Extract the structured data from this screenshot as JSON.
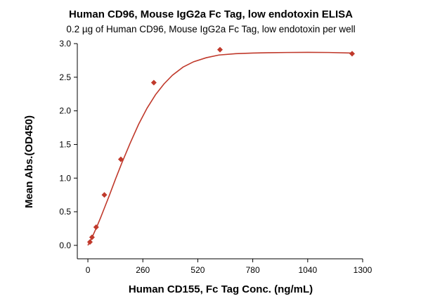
{
  "chart_data": {
    "type": "scatter",
    "title": "Human CD96, Mouse IgG2a Fc Tag, low endotoxin ELISA",
    "subtitle": "0.2 µg of Human CD96, Mouse IgG2a Fc Tag, low endotoxin per well",
    "xlabel": "Human CD155, Fc Tag Conc. (ng/mL)",
    "ylabel": "Mean Abs.(OD450)",
    "xlim": [
      -50,
      1300
    ],
    "ylim": [
      -0.2,
      3.0
    ],
    "x_ticks": [
      0,
      260,
      520,
      780,
      1040,
      1300
    ],
    "y_ticks": [
      0.0,
      0.5,
      1.0,
      1.5,
      2.0,
      2.5,
      3.0
    ],
    "x_tick_labels": [
      "0",
      "260",
      "520",
      "780",
      "1040",
      "1300"
    ],
    "y_tick_labels": [
      "0.0",
      "0.5",
      "1.0",
      "1.5",
      "2.0",
      "2.5",
      "3.0"
    ],
    "grid": false,
    "legend": "none",
    "colors": {
      "series": "#c0392b"
    },
    "series": [
      {
        "x": [
          9.8,
          19.5,
          39,
          78,
          156,
          312,
          625,
          1250
        ],
        "y": [
          0.05,
          0.12,
          0.27,
          0.75,
          1.28,
          2.42,
          2.91,
          2.85
        ]
      }
    ],
    "fit_curve": {
      "x": [
        0,
        20,
        40,
        60,
        80,
        100,
        130,
        160,
        200,
        240,
        280,
        320,
        360,
        400,
        450,
        500,
        560,
        620,
        700,
        780,
        860,
        940,
        1040,
        1140,
        1250
      ],
      "y": [
        0.0,
        0.12,
        0.26,
        0.41,
        0.57,
        0.73,
        0.98,
        1.22,
        1.52,
        1.8,
        2.04,
        2.24,
        2.4,
        2.53,
        2.65,
        2.73,
        2.79,
        2.83,
        2.85,
        2.86,
        2.865,
        2.868,
        2.87,
        2.868,
        2.86
      ]
    }
  }
}
